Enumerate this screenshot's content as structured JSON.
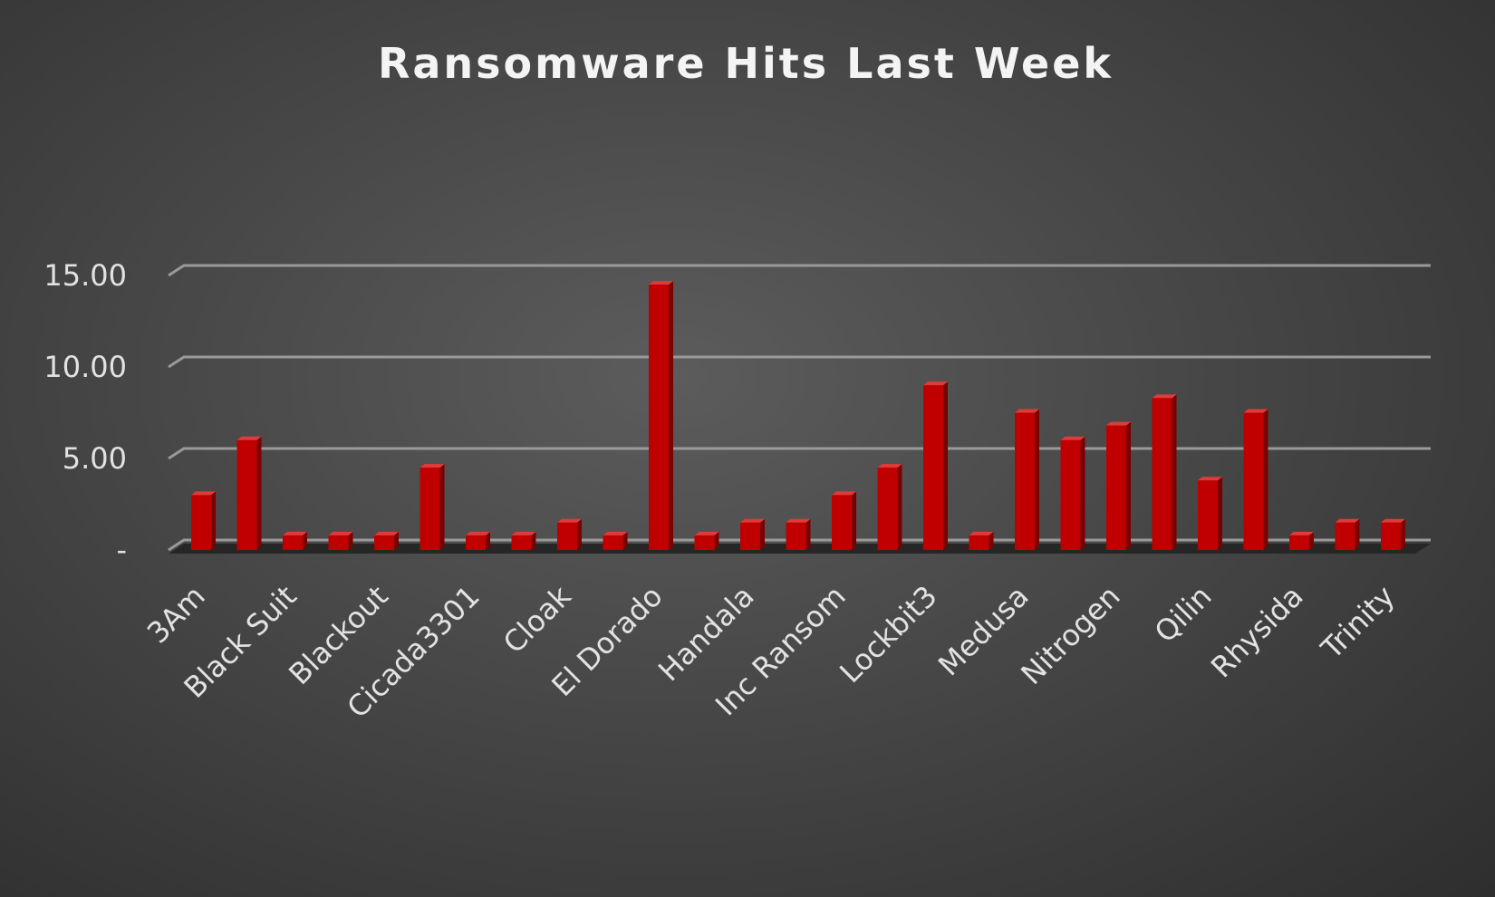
{
  "chart_data": {
    "type": "bar",
    "title": "Ransomware Hits Last Week",
    "xlabel": "",
    "ylabel": "",
    "ylim": [
      0,
      15
    ],
    "yticks": [
      0,
      5,
      10,
      15
    ],
    "ytick_labels": [
      "-",
      "5.00",
      "10.00",
      "15.00"
    ],
    "grid": true,
    "legend": "none",
    "bar_color": "#c00000",
    "categories": [
      "3Am",
      "",
      "Black Suit",
      "",
      "Blackout",
      "",
      "Cicada3301",
      "",
      "Cloak",
      "",
      "El Dorado",
      "",
      "Handala",
      "",
      "Inc Ransom",
      "",
      "Lockbit3",
      "",
      "Medusa",
      "",
      "Nitrogen",
      "",
      "Qilin",
      "",
      "Rhysida",
      "",
      "Trinity"
    ],
    "values": [
      3,
      6,
      0.8,
      0.8,
      0.8,
      4.5,
      0.8,
      0.8,
      1.5,
      0.8,
      14.5,
      0.8,
      1.5,
      1.5,
      3,
      4.5,
      9,
      0.8,
      7.5,
      6,
      6.8,
      8.3,
      3.8,
      7.5,
      0.8,
      1.5,
      1.5
    ]
  }
}
